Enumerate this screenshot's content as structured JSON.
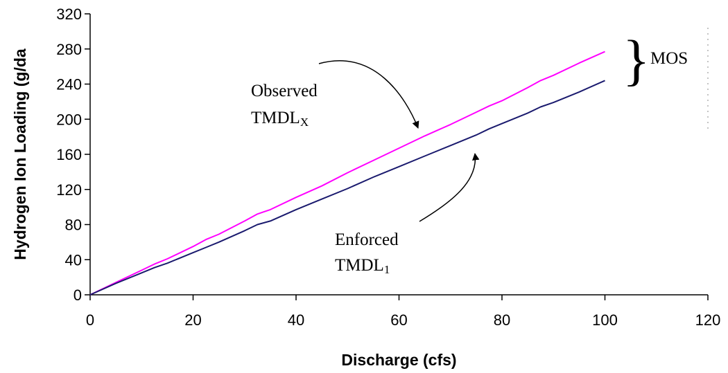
{
  "chart_data": {
    "type": "line",
    "title": "",
    "xlabel": "Discharge (cfs)",
    "ylabel": "Hydrogen Ion Loading (g/da",
    "xlim": [
      0,
      120
    ],
    "ylim": [
      0,
      320
    ],
    "xticks": [
      0,
      20,
      40,
      60,
      80,
      100,
      120
    ],
    "yticks": [
      0,
      40,
      80,
      120,
      160,
      200,
      240,
      280,
      320
    ],
    "grid": false,
    "series": [
      {
        "color": "#ff00ff",
        "x": [
          0,
          5,
          10,
          12.5,
          15,
          20,
          22.5,
          25,
          30,
          32.5,
          35,
          40,
          45,
          50,
          55,
          60,
          65,
          70,
          75,
          77.5,
          80,
          85,
          87.5,
          90,
          95,
          100
        ],
        "y": [
          0,
          14,
          28,
          35,
          41,
          55,
          63,
          69,
          84,
          92,
          97,
          111,
          124,
          139,
          153,
          167,
          181,
          194,
          208,
          215,
          221,
          236,
          244,
          250,
          264,
          277
        ]
      },
      {
        "color": "#1a1a6e",
        "x": [
          0,
          5,
          10,
          12.5,
          15,
          20,
          22.5,
          25,
          30,
          32.5,
          35,
          40,
          45,
          50,
          55,
          60,
          65,
          70,
          75,
          77.5,
          80,
          85,
          87.5,
          90,
          95,
          100
        ],
        "y": [
          0,
          13,
          25,
          31,
          36,
          48,
          54,
          60,
          73,
          80,
          84,
          97,
          109,
          121,
          134,
          146,
          158,
          170,
          182,
          189,
          195,
          207,
          214,
          219,
          231,
          244
        ]
      }
    ],
    "annotations": [
      {
        "line1": "Observed",
        "line2": "TMDL",
        "subscript": "X"
      },
      {
        "line1": "Enforced",
        "line2": "TMDL",
        "subscript": "1"
      },
      {
        "text": "MOS",
        "brace": "}"
      }
    ]
  }
}
